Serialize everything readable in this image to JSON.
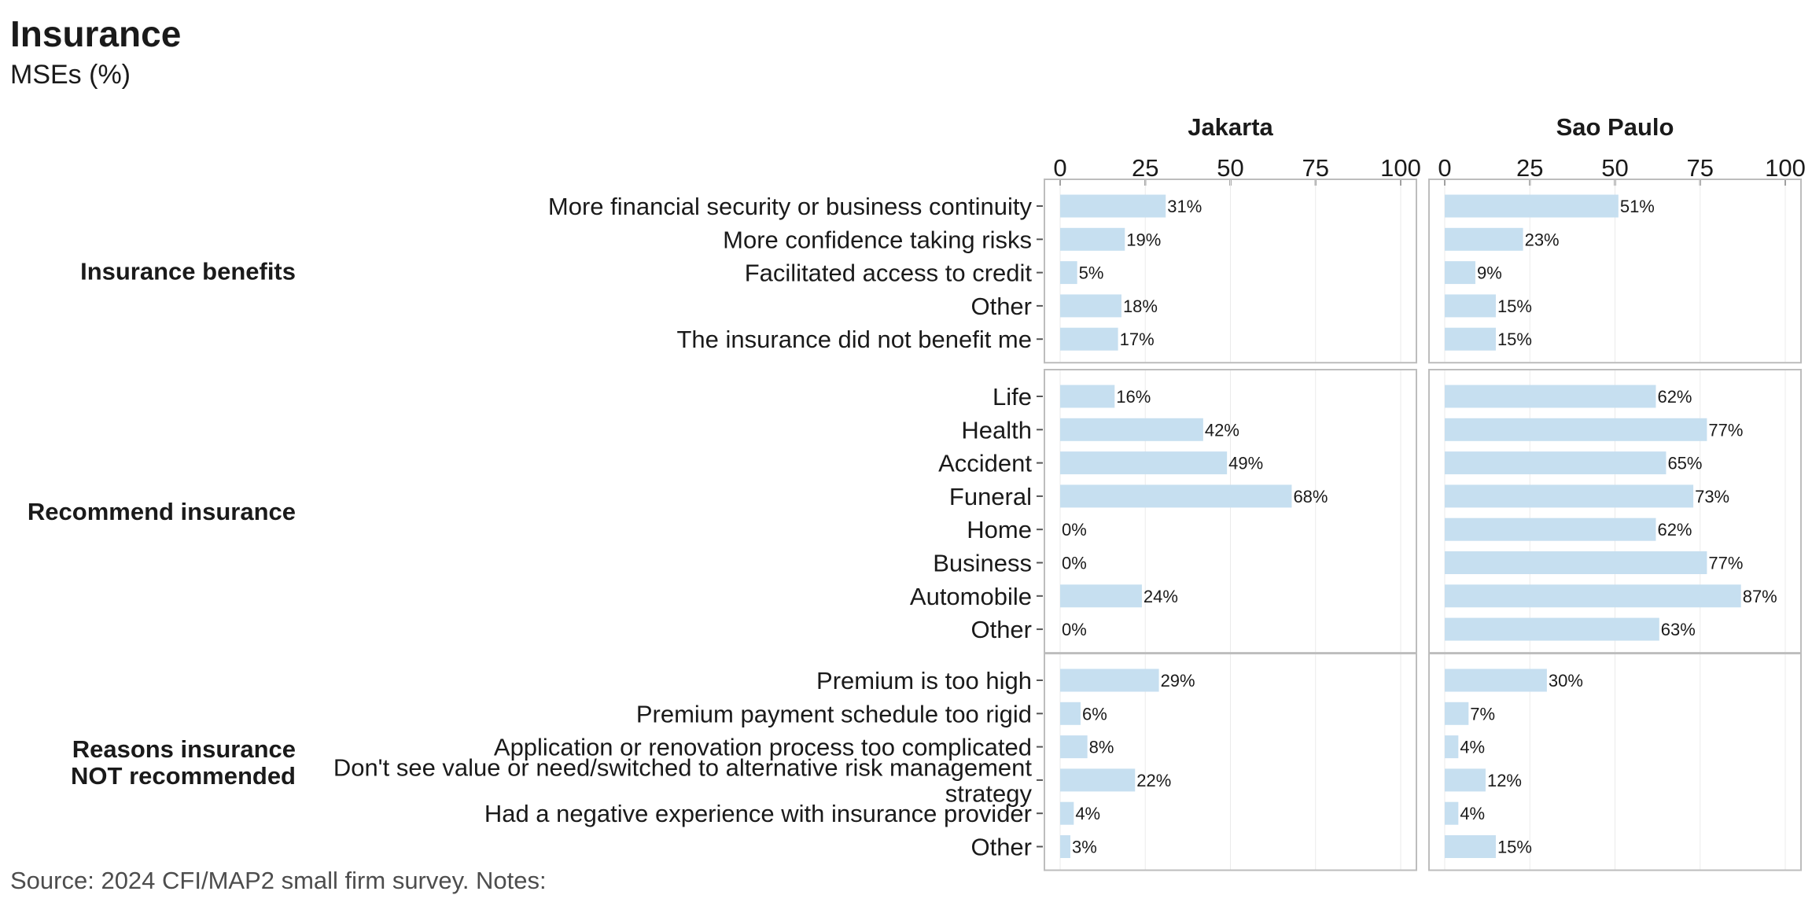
{
  "title": "Insurance",
  "subtitle": "MSEs (%)",
  "source": "Source: 2024 CFI/MAP2 small firm survey. Notes:",
  "colors": {
    "bar": "#c6dff0",
    "panel_border": "#bdbdbd",
    "grid": "#ebebeb"
  },
  "chart_data": {
    "type": "bar",
    "orientation": "horizontal",
    "facets": [
      "Jakarta",
      "Sao Paulo"
    ],
    "xlim": [
      0,
      100
    ],
    "xticks": [
      0,
      25,
      50,
      75,
      100
    ],
    "value_suffix": "%",
    "groups": [
      {
        "label": [
          "Insurance benefits"
        ],
        "categories": [
          [
            "More financial security or business continuity"
          ],
          [
            "More confidence taking risks"
          ],
          [
            "Facilitated access to credit"
          ],
          [
            "Other"
          ],
          [
            "The insurance did not benefit me"
          ]
        ],
        "values": {
          "Jakarta": [
            31,
            19,
            5,
            18,
            17
          ],
          "Sao Paulo": [
            51,
            23,
            9,
            15,
            15
          ]
        }
      },
      {
        "label": [
          "Recommend insurance"
        ],
        "categories": [
          [
            "Life"
          ],
          [
            "Health"
          ],
          [
            "Accident"
          ],
          [
            "Funeral"
          ],
          [
            "Home"
          ],
          [
            "Business"
          ],
          [
            "Automobile"
          ],
          [
            "Other"
          ]
        ],
        "values": {
          "Jakarta": [
            16,
            42,
            49,
            68,
            0,
            0,
            24,
            0
          ],
          "Sao Paulo": [
            62,
            77,
            65,
            73,
            62,
            77,
            87,
            63
          ]
        }
      },
      {
        "label": [
          "Reasons insurance",
          "NOT recommended"
        ],
        "categories": [
          [
            "Premium is too high"
          ],
          [
            "Premium payment schedule too rigid"
          ],
          [
            "Application or renovation process too complicated"
          ],
          [
            "Don't see value or need/switched to alternative risk management",
            "strategy"
          ],
          [
            "Had a negative experience with insurance provider"
          ],
          [
            "Other"
          ]
        ],
        "values": {
          "Jakarta": [
            29,
            6,
            8,
            22,
            4,
            3
          ],
          "Sao Paulo": [
            30,
            7,
            4,
            12,
            4,
            15
          ]
        }
      }
    ]
  }
}
